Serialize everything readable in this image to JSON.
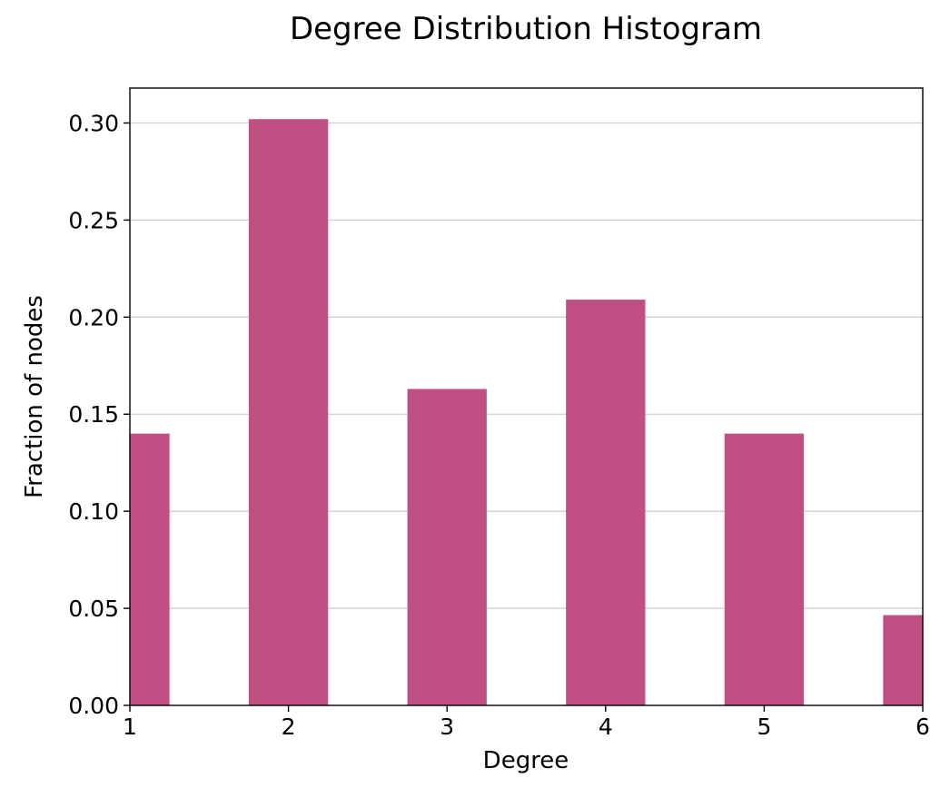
{
  "chart_data": {
    "type": "bar",
    "title": "Degree Distribution Histogram",
    "xlabel": "Degree",
    "ylabel": "Fraction of nodes",
    "xlim": [
      1,
      6
    ],
    "ylim": [
      0,
      0.318
    ],
    "xticks": [
      "1",
      "2",
      "3",
      "4",
      "5",
      "6"
    ],
    "yticks": [
      "0.00",
      "0.05",
      "0.10",
      "0.15",
      "0.20",
      "0.25",
      "0.30"
    ],
    "grid": "horizontal",
    "bar_color": "#c05083",
    "bins": [
      {
        "start": 1.0,
        "end": 1.25,
        "value": 0.14
      },
      {
        "start": 1.75,
        "end": 2.25,
        "value": 0.302
      },
      {
        "start": 2.75,
        "end": 3.25,
        "value": 0.163
      },
      {
        "start": 3.75,
        "end": 4.25,
        "value": 0.209
      },
      {
        "start": 4.75,
        "end": 5.25,
        "value": 0.14
      },
      {
        "start": 5.75,
        "end": 6.0,
        "value": 0.0465
      }
    ]
  }
}
